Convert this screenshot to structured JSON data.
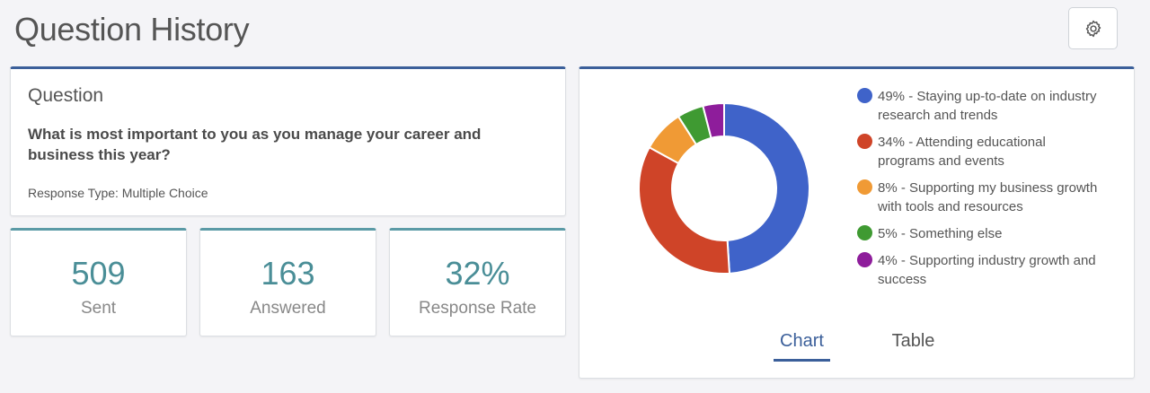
{
  "header": {
    "title": "Question History"
  },
  "question": {
    "heading": "Question",
    "text": "What is most important to you as you manage your career and business this year?",
    "response_type": "Response Type: Multiple Choice"
  },
  "stats": [
    {
      "value": "509",
      "label": "Sent"
    },
    {
      "value": "163",
      "label": "Answered"
    },
    {
      "value": "32%",
      "label": "Response Rate"
    }
  ],
  "chart_data": {
    "type": "pie",
    "categories": [
      "49% - Staying up-to-date on industry research and trends",
      "34% - Attending educational programs and events",
      "8% - Supporting my business growth with tools and resources",
      "5% - Something else",
      "4% - Supporting industry growth and success"
    ],
    "values": [
      49,
      34,
      8,
      5,
      4
    ],
    "colors": [
      "#3f63c9",
      "#cf4428",
      "#f09a35",
      "#3f9a32",
      "#8e1d9b"
    ]
  },
  "tabs": [
    {
      "label": "Chart",
      "active": true
    },
    {
      "label": "Table",
      "active": false
    }
  ],
  "icons": {
    "settings": "gear-icon"
  }
}
